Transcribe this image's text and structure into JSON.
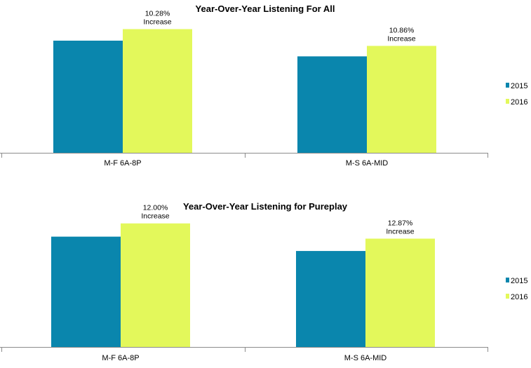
{
  "colors": {
    "2015": "#0a86ad",
    "2016": "#e3f85b",
    "axis": "#8c8c8c"
  },
  "chart_data": [
    {
      "type": "bar",
      "title": "Year-Over-Year Listening For All",
      "categories": [
        "M-F 6A-8P",
        "M-S 6A-MID"
      ],
      "series": [
        {
          "name": "2015",
          "values": [
            100,
            86
          ]
        },
        {
          "name": "2016",
          "values": [
            110.28,
            95.34
          ]
        }
      ],
      "annotations": [
        {
          "category": "M-F 6A-8P",
          "line1": "10.28%",
          "line2": "Increase"
        },
        {
          "category": "M-S 6A-MID",
          "line1": "10.86%",
          "line2": "Increase"
        }
      ],
      "ylim": [
        0,
        115
      ],
      "grid": false,
      "legend": "right"
    },
    {
      "type": "bar",
      "title": "Year-Over-Year Listening for Pureplay",
      "categories": [
        "M-F 6A-8P",
        "M-S 6A-MID"
      ],
      "series": [
        {
          "name": "2015",
          "values": [
            100,
            87
          ]
        },
        {
          "name": "2016",
          "values": [
            112.0,
            98.2
          ]
        }
      ],
      "annotations": [
        {
          "category": "M-F 6A-8P",
          "line1": "12.00%",
          "line2": "Increase"
        },
        {
          "category": "M-S 6A-MID",
          "line1": "12.87%",
          "line2": "Increase"
        }
      ],
      "ylim": [
        0,
        115
      ],
      "grid": false,
      "legend": "right"
    }
  ]
}
